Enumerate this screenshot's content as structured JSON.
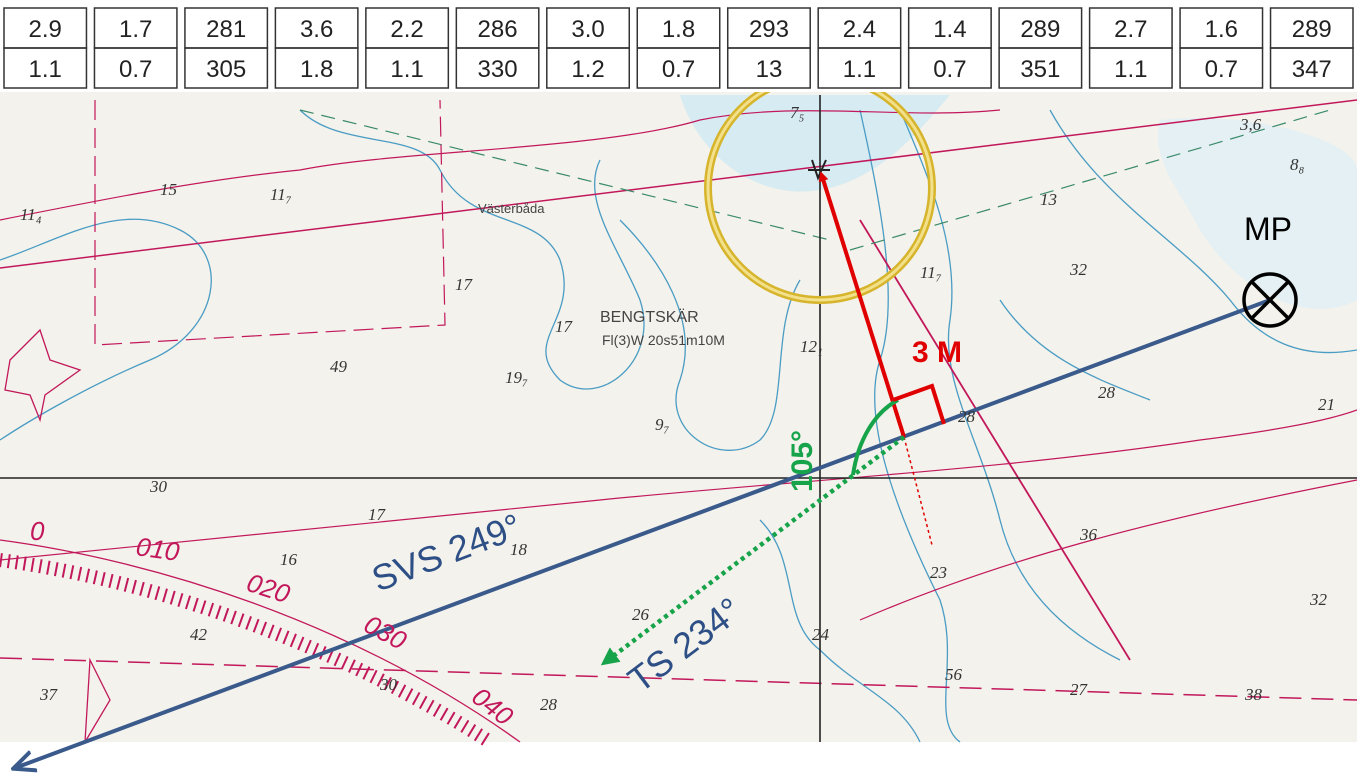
{
  "table": {
    "rows": [
      [
        "2.9",
        "1.7",
        "281",
        "3.6",
        "2.2",
        "286",
        "3.0",
        "1.8",
        "293",
        "2.4",
        "1.4",
        "289",
        "2.7",
        "1.6",
        "289"
      ],
      [
        "1.1",
        "0.7",
        "305",
        "1.8",
        "1.1",
        "330",
        "1.2",
        "0.7",
        "13",
        "1.1",
        "0.7",
        "351",
        "1.1",
        "0.7",
        "347"
      ]
    ]
  },
  "annotations": {
    "mp": "MP",
    "distance": "3 M",
    "angle": "105°",
    "svs": "SVS 249°",
    "ts": "TS 234°"
  },
  "map_labels": {
    "place": "BENGTSKÄR",
    "light": "Fl(3)W 20s51m10M",
    "village": "Västerbåda",
    "depths": [
      "15",
      "11₇",
      "11₄",
      "17",
      "49",
      "19₇",
      "17",
      "9₇",
      "12₁",
      "11₇",
      "13",
      "32",
      "28",
      "28",
      "21",
      "36",
      "23",
      "32",
      "26",
      "24",
      "56",
      "27",
      "38",
      "17",
      "16",
      "18",
      "42",
      "37",
      "30",
      "28",
      "8₈",
      "3,6",
      "30",
      "7₅"
    ],
    "rose": [
      "0",
      "010",
      "020",
      "030",
      "040"
    ]
  }
}
